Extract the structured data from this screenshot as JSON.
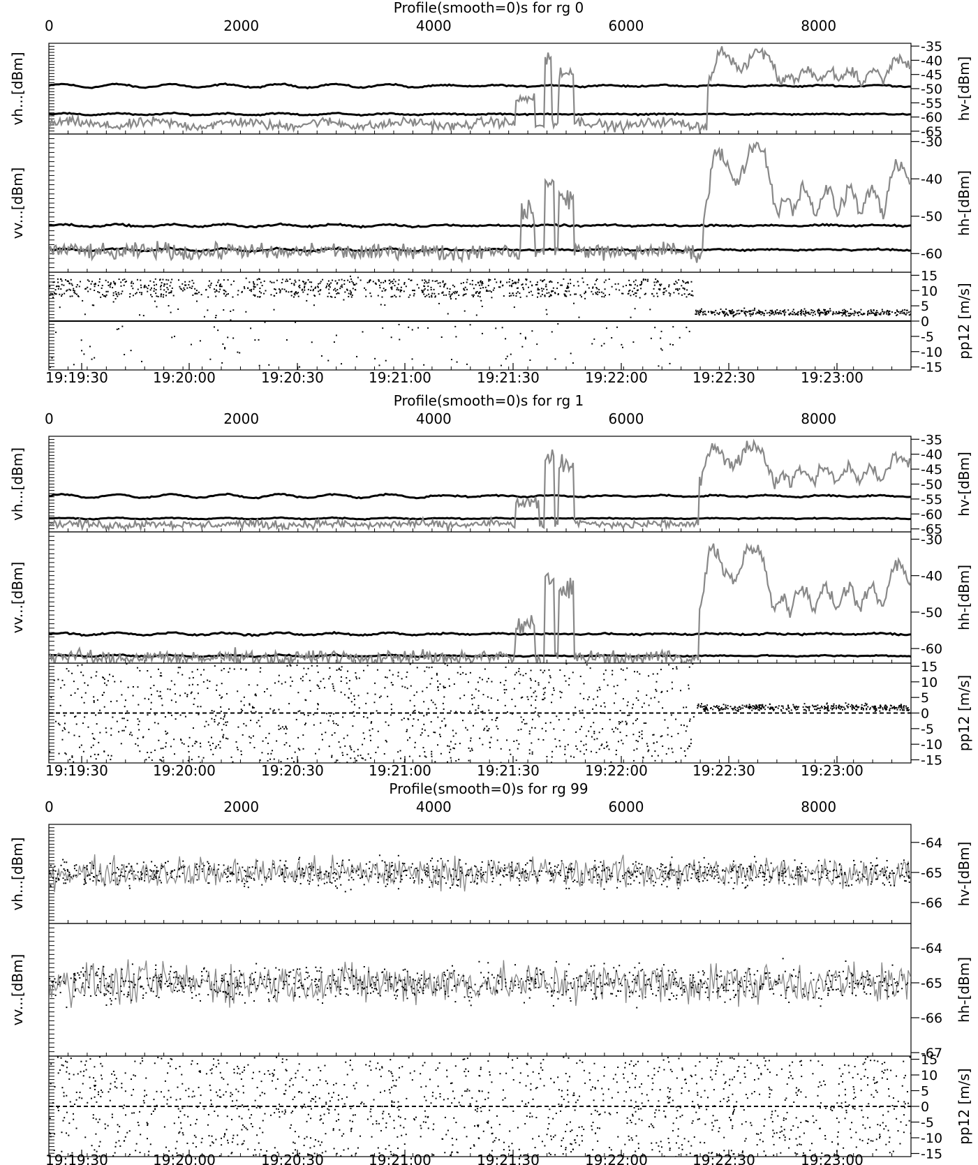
{
  "chart_data": [
    {
      "type": "line",
      "title": "Profile(smooth=0)s for rg 0",
      "top_axis": {
        "range": [
          0,
          8960
        ],
        "ticks": [
          0,
          2000,
          4000,
          6000,
          8000
        ]
      },
      "time_ticks": [
        "19:19:30",
        "19:20:00",
        "19:20:30",
        "19:21:00",
        "19:21:30",
        "19:22:00",
        "19:22:30",
        "19:23:00"
      ],
      "panels": [
        {
          "left_label": "vh...[dBm]",
          "right_label": "hv-[dBm]",
          "ylim": [
            -66,
            -34
          ],
          "ticks": [
            -35,
            -40,
            -45,
            -50,
            -55,
            -60,
            -65
          ],
          "series": [
            {
              "style": "dots",
              "baseline": -49,
              "noise": 0.4,
              "wave": 0.6
            },
            {
              "style": "dots",
              "baseline": -59,
              "noise": 0.4,
              "wave": 0.3
            },
            {
              "style": "fill",
              "baseline": -62.5,
              "noise": 1.2,
              "wave": 0.8,
              "events": [
                {
                  "x0": 4850,
                  "x1": 5050,
                  "peak": -55
                },
                {
                  "x0": 5150,
                  "x1": 5220,
                  "peak": -40
                },
                {
                  "x0": 5300,
                  "x1": 5450,
                  "peak": -45
                },
                {
                  "x0": 6850,
                  "x1": 8960,
                  "peak": -37,
                  "ramp": -48
                }
              ]
            }
          ]
        },
        {
          "left_label": "vv...[dBm]",
          "right_label": "hh-[dBm]",
          "ylim": [
            -65,
            -28
          ],
          "ticks": [
            -30,
            -40,
            -50,
            -60
          ],
          "series": [
            {
              "style": "dots",
              "baseline": -52.5,
              "noise": 0.4,
              "wave": 0.3
            },
            {
              "style": "dots",
              "baseline": -59,
              "noise": 0.4,
              "wave": 0.3
            },
            {
              "style": "fill",
              "baseline": -59.5,
              "noise": 1.5,
              "wave": 0.5,
              "events": [
                {
                  "x0": 4900,
                  "x1": 5050,
                  "peak": -50
                },
                {
                  "x0": 5150,
                  "x1": 5250,
                  "peak": -42
                },
                {
                  "x0": 5300,
                  "x1": 5450,
                  "peak": -46
                },
                {
                  "x0": 6800,
                  "x1": 8960,
                  "peak": -32,
                  "ramp": -50
                }
              ]
            }
          ]
        },
        {
          "left_label": "pp12 [m/s]",
          "right_label": "",
          "ylim": [
            -16,
            16
          ],
          "ticks": [
            15,
            10,
            5,
            0,
            -5,
            -10,
            -15
          ],
          "series": [
            {
              "style": "zero-line",
              "baseline": 0
            },
            {
              "style": "scatter",
              "band": [
                8,
                14
              ],
              "active_until": 6700,
              "settle": 3
            }
          ]
        }
      ]
    },
    {
      "type": "line",
      "title": "Profile(smooth=0)s for rg 1",
      "top_axis": {
        "range": [
          0,
          8960
        ],
        "ticks": [
          0,
          2000,
          4000,
          6000,
          8000
        ]
      },
      "time_ticks": [
        "19:19:30",
        "19:20:00",
        "19:20:30",
        "19:21:00",
        "19:21:30",
        "19:22:00",
        "19:22:30",
        "19:23:00"
      ],
      "panels": [
        {
          "left_label": "vh...[dBm]",
          "right_label": "hv-[dBm]",
          "ylim": [
            -66,
            -34
          ],
          "ticks": [
            -35,
            -40,
            -45,
            -50,
            -55,
            -60,
            -65
          ],
          "series": [
            {
              "style": "dots",
              "baseline": -54,
              "noise": 0.4,
              "wave": 0.6
            },
            {
              "style": "dots",
              "baseline": -61.5,
              "noise": 0.3,
              "wave": 0.2
            },
            {
              "style": "fill",
              "baseline": -63.5,
              "noise": 1.0,
              "wave": 0.3,
              "events": [
                {
                  "x0": 4850,
                  "x1": 5100,
                  "peak": -58
                },
                {
                  "x0": 5150,
                  "x1": 5250,
                  "peak": -42
                },
                {
                  "x0": 5300,
                  "x1": 5450,
                  "peak": -45
                },
                {
                  "x0": 6750,
                  "x1": 8960,
                  "peak": -37,
                  "ramp": -50
                }
              ]
            }
          ]
        },
        {
          "left_label": "vv...[dBm]",
          "right_label": "hh-[dBm]",
          "ylim": [
            -64,
            -28
          ],
          "ticks": [
            -30,
            -40,
            -50,
            -60
          ],
          "series": [
            {
              "style": "dots",
              "baseline": -56,
              "noise": 0.4,
              "wave": 0.3
            },
            {
              "style": "dots",
              "baseline": -62,
              "noise": 0.3,
              "wave": 0.2
            },
            {
              "style": "fill",
              "baseline": -62.5,
              "noise": 1.3,
              "wave": 0.5,
              "events": [
                {
                  "x0": 4850,
                  "x1": 5050,
                  "peak": -55
                },
                {
                  "x0": 5150,
                  "x1": 5250,
                  "peak": -42
                },
                {
                  "x0": 5300,
                  "x1": 5450,
                  "peak": -45
                },
                {
                  "x0": 6750,
                  "x1": 8960,
                  "peak": -33,
                  "ramp": -50
                }
              ]
            }
          ]
        },
        {
          "left_label": "pp12 [m/s]",
          "right_label": "",
          "ylim": [
            -16,
            16
          ],
          "ticks": [
            15,
            10,
            5,
            0,
            -5,
            -10,
            -15
          ],
          "series": [
            {
              "style": "zero-line",
              "baseline": 0
            },
            {
              "style": "scatter",
              "band": [
                -16,
                16
              ],
              "active_until": 6700,
              "settle": 2
            }
          ]
        }
      ]
    },
    {
      "type": "line",
      "title": "Profile(smooth=0)s for rg 99",
      "top_axis": {
        "range": [
          0,
          8960
        ],
        "ticks": [
          0,
          2000,
          4000,
          6000,
          8000
        ]
      },
      "time_ticks": [
        "19:19:30",
        "19:20:00",
        "19:20:30",
        "19:21:00",
        "19:21:30",
        "19:22:00",
        "19:22:30",
        "19:23:00"
      ],
      "panels": [
        {
          "left_label": "vh...[dBm]",
          "right_label": "hv-[dBm]",
          "ylim": [
            -66.7,
            -63.4
          ],
          "ticks": [
            -64,
            -65,
            -66
          ],
          "series": [
            {
              "style": "noise",
              "baseline": -65,
              "noise": 0.35,
              "wave": 0
            }
          ]
        },
        {
          "left_label": "vv...[dBm]",
          "right_label": "hh-[dBm]",
          "ylim": [
            -67.1,
            -63.3
          ],
          "ticks": [
            -64,
            -65,
            -66,
            -67
          ],
          "series": [
            {
              "style": "noise",
              "baseline": -65,
              "noise": 0.4,
              "wave": 0
            }
          ]
        },
        {
          "left_label": "pp12 [m/s]",
          "right_label": "",
          "ylim": [
            -16,
            16
          ],
          "ticks": [
            15,
            10,
            5,
            0,
            -5,
            -10,
            -15
          ],
          "series": [
            {
              "style": "zero-line",
              "baseline": 0
            },
            {
              "style": "scatter",
              "band": [
                -16,
                16
              ],
              "active_until": 8960,
              "settle": 0
            }
          ]
        }
      ]
    }
  ]
}
